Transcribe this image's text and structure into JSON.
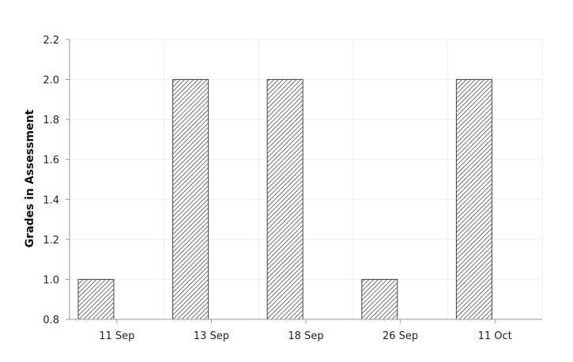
{
  "chart_data": {
    "type": "bar",
    "title": "",
    "xlabel": "",
    "ylabel": "Grades in Assessment",
    "categories": [
      "11 Sep",
      "13 Sep",
      "18 Sep",
      "26 Sep",
      "11 Oct"
    ],
    "series": [
      {
        "values": [
          1.0,
          2.0,
          2.0,
          1.0,
          2.0
        ]
      }
    ],
    "ylim": [
      0.8,
      2.2
    ],
    "yticks": [
      "0.8",
      "1.0",
      "1.2",
      "1.4",
      "1.6",
      "1.8",
      "2.0",
      "2.2"
    ],
    "grid": true,
    "bar_pattern": "diagonal-hatch",
    "colors": {
      "bar_stroke": "#444444",
      "hatch": "#333333",
      "grid": "#eeeeee",
      "axis": "#999999"
    }
  }
}
